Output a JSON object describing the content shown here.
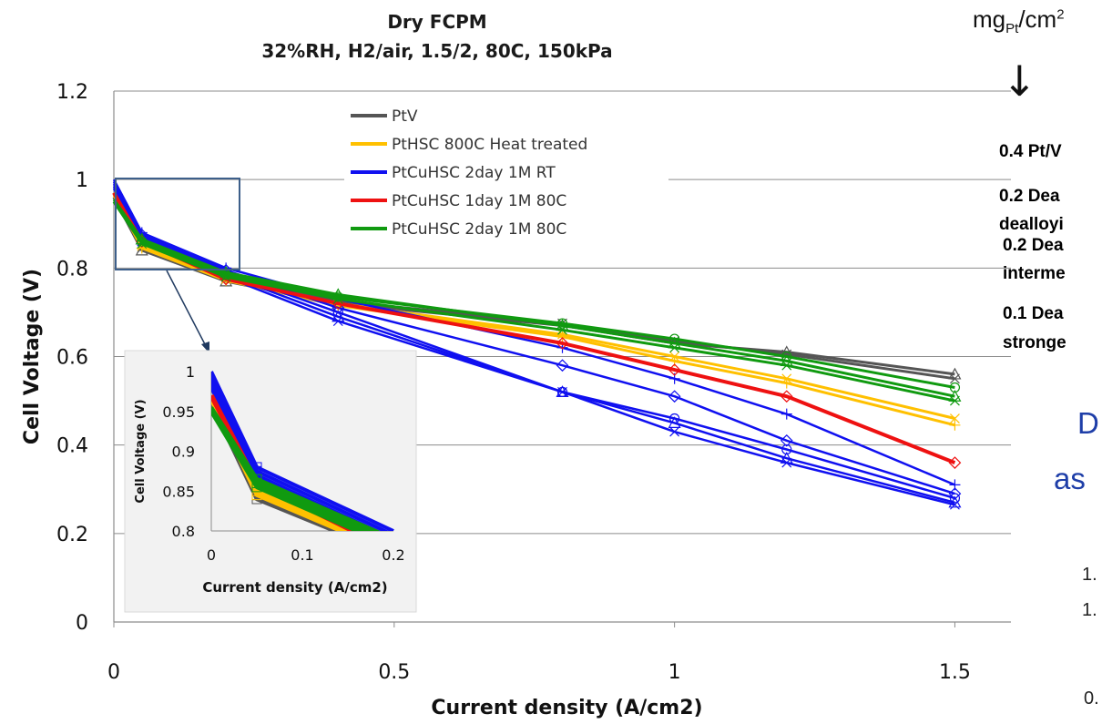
{
  "chart_data": {
    "type": "line",
    "title": "Dry FCPM",
    "subtitle": "32%RH, H2/air, 1.5/2, 80C, 150kPa",
    "xlabel": "Current density (A/cm2)",
    "ylabel": "Cell Voltage (V)",
    "xlim": [
      0,
      1.6
    ],
    "ylim": [
      0,
      1.2
    ],
    "xticks": [
      "0",
      "0.5",
      "1",
      "1.5"
    ],
    "yticks": [
      "0",
      "0.2",
      "0.4",
      "0.6",
      "0.8",
      "1",
      "1.2"
    ],
    "grid": "horizontal",
    "legend_position": "top-center",
    "x": [
      0,
      0.05,
      0.2,
      0.4,
      0.8,
      1.0,
      1.2,
      1.5
    ],
    "series": [
      {
        "name": "PtV",
        "color": "#555555",
        "width": 3,
        "lines": [
          [
            0.96,
            0.84,
            0.77,
            0.72,
            0.67,
            0.63,
            0.61,
            0.56
          ],
          [
            0.96,
            0.845,
            0.775,
            0.725,
            0.675,
            0.635,
            0.605,
            0.55
          ]
        ]
      },
      {
        "name": "PtHSC 800C Heat treated",
        "color": "#ffc000",
        "width": 3,
        "lines": [
          [
            0.97,
            0.85,
            0.775,
            0.72,
            0.65,
            0.6,
            0.55,
            0.46
          ],
          [
            0.965,
            0.845,
            0.772,
            0.715,
            0.645,
            0.59,
            0.54,
            0.445
          ]
        ]
      },
      {
        "name": "PtCuHSC 2day 1M RT",
        "color": "#1010f0",
        "width": 2.5,
        "lines": [
          [
            1.0,
            0.88,
            0.8,
            0.73,
            0.62,
            0.55,
            0.47,
            0.31
          ],
          [
            0.995,
            0.875,
            0.795,
            0.71,
            0.58,
            0.51,
            0.41,
            0.29
          ],
          [
            0.99,
            0.87,
            0.79,
            0.7,
            0.52,
            0.46,
            0.39,
            0.28
          ],
          [
            0.985,
            0.865,
            0.785,
            0.69,
            0.52,
            0.45,
            0.37,
            0.27
          ],
          [
            0.98,
            0.86,
            0.78,
            0.68,
            0.52,
            0.43,
            0.36,
            0.265
          ]
        ]
      },
      {
        "name": "PtCuHSC 1day 1M 80C",
        "color": "#ee1111",
        "width": 4,
        "lines": [
          [
            0.97,
            0.86,
            0.775,
            0.72,
            0.63,
            0.57,
            0.51,
            0.36
          ]
        ]
      },
      {
        "name": "PtCuHSC 2day 1M 80C",
        "color": "#109a10",
        "width": 3,
        "lines": [
          [
            0.95,
            0.86,
            0.785,
            0.735,
            0.675,
            0.64,
            0.6,
            0.53
          ],
          [
            0.955,
            0.865,
            0.79,
            0.74,
            0.67,
            0.63,
            0.59,
            0.51
          ],
          [
            0.95,
            0.855,
            0.78,
            0.73,
            0.66,
            0.62,
            0.58,
            0.5
          ]
        ]
      }
    ],
    "inset": {
      "xlabel": "Current density (A/cm2)",
      "ylabel": "Cell Voltage (V)",
      "xlim": [
        0,
        0.2
      ],
      "ylim": [
        0.8,
        1.0
      ],
      "xticks": [
        "0",
        "0.1",
        "0.2"
      ],
      "yticks": [
        "0.8",
        "0.85",
        "0.9",
        "0.95",
        "1"
      ]
    }
  },
  "annotations": {
    "unit_label_main": "mg",
    "unit_label_sub": "Pt",
    "unit_label_rest": "/cm",
    "unit_label_sup": "2",
    "arrow_glyph": "↓",
    "side_notes": [
      {
        "text": "0.4  Pt/V",
        "color": "#595959"
      },
      {
        "text": "0.2 Dea",
        "color": "#0020e0"
      },
      {
        "text": "dealloyi",
        "color": "#0020e0"
      },
      {
        "text": "0.2 Dea",
        "color": "#ee1111"
      },
      {
        "text": "interme",
        "color": "#ee1111"
      },
      {
        "text": "0.1 Dea",
        "color": "#109a10"
      },
      {
        "text": "stronge",
        "color": "#109a10"
      }
    ],
    "partial_big_1": "D",
    "partial_big_2": "as",
    "partial_small_1": "1.",
    "partial_small_2": "1.",
    "partial_small_3": "0."
  }
}
